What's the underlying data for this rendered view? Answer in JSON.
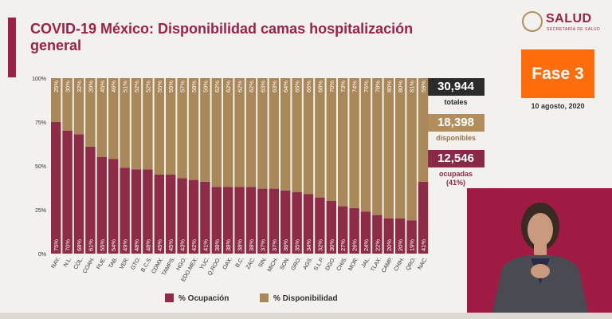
{
  "header": {
    "title": "COVID-19 México: Disponibilidad camas hospitalización general",
    "logo_text": "SALUD",
    "logo_subtext": "SECRETARÍA DE SALUD",
    "phase": "Fase 3",
    "date": "10 agosto, 2020"
  },
  "stats": {
    "total_value": "30,944",
    "total_label": "totales",
    "available_value": "18,398",
    "available_label": "disponibles",
    "occupied_value": "12,546",
    "occupied_label": "ocupadas",
    "occupied_pct": "(41%)"
  },
  "colors": {
    "occupancy": "#8e2b47",
    "availability": "#a98759",
    "accent": "#9b2247",
    "phase_box": "#ff6c0b"
  },
  "chart_data": {
    "type": "bar",
    "stacked": true,
    "categories": [
      "NAY.",
      "N.L.",
      "COL.",
      "COAH.",
      "PUE.",
      "TAB.",
      "VER.",
      "GTO.",
      "B.C.S.",
      "CDMX.",
      "TAMPS.",
      "HGO.",
      "EDO.MEX.",
      "YUC.",
      "Q.ROO.",
      "OAX.",
      "B.C.",
      "ZAC.",
      "SIN.",
      "MICH.",
      "SON.",
      "GRO.",
      "AGS.",
      "S.L.P.",
      "DGO.",
      "CHIS.",
      "MOR.",
      "JAL.",
      "TLAX.",
      "CAMP.",
      "CHIH.",
      "QRO.",
      "NAC."
    ],
    "series": [
      {
        "name": "% Ocupación",
        "values": [
          75,
          70,
          68,
          61,
          55,
          54,
          49,
          48,
          48,
          45,
          45,
          43,
          42,
          41,
          38,
          38,
          38,
          38,
          37,
          37,
          36,
          35,
          34,
          32,
          30,
          27,
          26,
          24,
          22,
          20,
          20,
          19,
          41
        ]
      },
      {
        "name": "% Disponibilidad",
        "values": [
          25,
          30,
          32,
          39,
          45,
          46,
          51,
          52,
          52,
          55,
          55,
          57,
          58,
          59,
          62,
          62,
          62,
          62,
          63,
          63,
          64,
          65,
          66,
          68,
          70,
          73,
          74,
          76,
          78,
          80,
          80,
          81,
          59
        ]
      }
    ],
    "y_ticks": [
      "0%",
      "25%",
      "50%",
      "75%",
      "100%"
    ],
    "ylim": [
      0,
      100
    ],
    "legend_position": "bottom",
    "grid": false
  }
}
